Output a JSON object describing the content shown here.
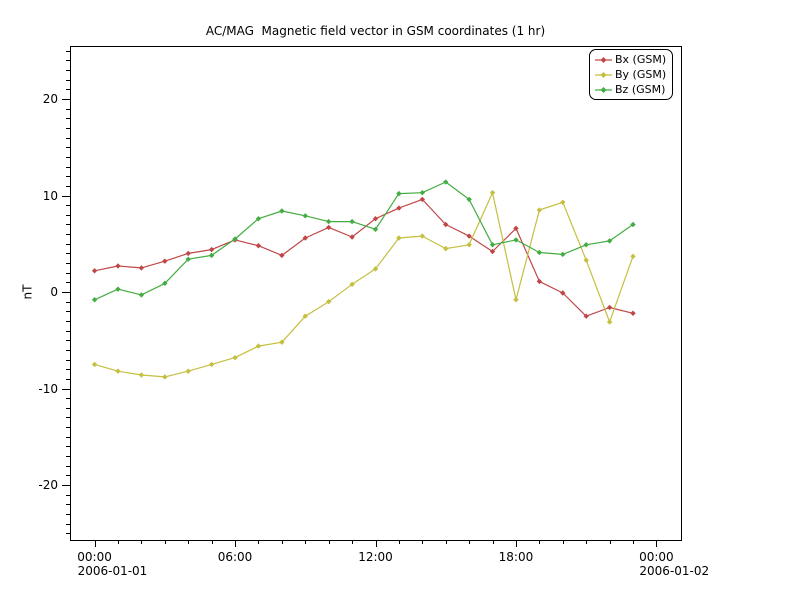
{
  "window": {
    "background": "#ffffff",
    "text_color": "#000000",
    "axes_color": "#000000"
  },
  "chart_data": {
    "type": "line",
    "title": "AC/MAG  Magnetic field vector in GSM coordinates (1 hr)",
    "ylabel": "nT",
    "x_start_date": "2006-01-01",
    "x_end_date": "2006-01-02",
    "x_hours": [
      0,
      1,
      2,
      3,
      4,
      5,
      6,
      7,
      8,
      9,
      10,
      11,
      12,
      13,
      14,
      15,
      16,
      17,
      18,
      19,
      20,
      21,
      22,
      23
    ],
    "series": [
      {
        "name": "Bx (GSM)",
        "color": "#c04747",
        "values": [
          2.2,
          2.7,
          2.5,
          3.2,
          4.0,
          4.4,
          5.4,
          4.8,
          3.8,
          5.6,
          6.7,
          5.7,
          7.6,
          8.7,
          9.6,
          7.0,
          5.8,
          4.2,
          6.6,
          1.1,
          -0.1,
          -2.5,
          -1.6,
          -2.2
        ]
      },
      {
        "name": "By (GSM)",
        "color": "#c5bf3f",
        "values": [
          -7.5,
          -8.2,
          -8.6,
          -8.8,
          -8.2,
          -7.5,
          -6.8,
          -5.6,
          -5.2,
          -2.5,
          -1.0,
          0.8,
          2.4,
          5.6,
          5.8,
          4.5,
          4.9,
          10.3,
          -0.8,
          8.5,
          9.3,
          3.3,
          -3.1,
          3.7
        ]
      },
      {
        "name": "Bz (GSM)",
        "color": "#43ad43",
        "values": [
          -0.8,
          0.3,
          -0.3,
          0.9,
          3.4,
          3.8,
          5.5,
          7.6,
          8.4,
          7.9,
          7.3,
          7.3,
          6.5,
          10.2,
          10.3,
          11.4,
          9.6,
          4.9,
          5.4,
          4.1,
          3.9,
          4.9,
          5.3,
          7.0
        ]
      }
    ],
    "xlim_hours": [
      -1.05,
      25.05
    ],
    "ylim": [
      -25.7,
      25.5
    ],
    "x_major_ticks": [
      {
        "hour": 0,
        "label": "00:00",
        "date": "2006-01-01"
      },
      {
        "hour": 6,
        "label": "06:00"
      },
      {
        "hour": 12,
        "label": "12:00"
      },
      {
        "hour": 18,
        "label": "18:00"
      },
      {
        "hour": 24,
        "label": "00:00",
        "date": "2006-01-02"
      }
    ],
    "y_major_ticks": [
      {
        "value": 20,
        "label": "20"
      },
      {
        "value": 10,
        "label": "10"
      },
      {
        "value": 0,
        "label": "0"
      },
      {
        "value": -10,
        "label": "-10"
      },
      {
        "value": -20,
        "label": "-20"
      }
    ],
    "x_minor_step_hours": 1,
    "y_minor_step": 1,
    "grid": false,
    "legend": {
      "position": "top-right",
      "entries": [
        "Bx (GSM)",
        "By (GSM)",
        "Bz (GSM)"
      ]
    }
  }
}
